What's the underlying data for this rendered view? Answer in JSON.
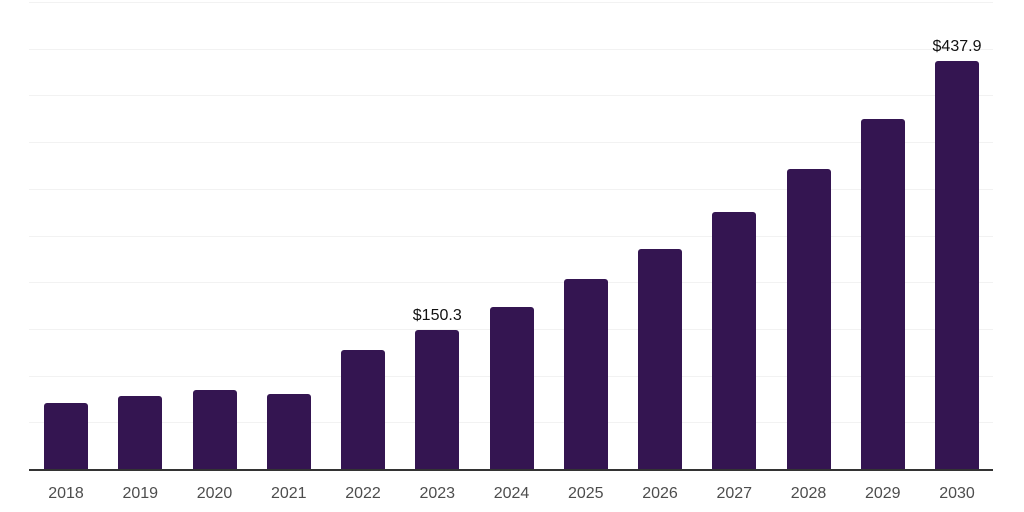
{
  "chart_data": {
    "type": "bar",
    "categories": [
      "2018",
      "2019",
      "2020",
      "2021",
      "2022",
      "2023",
      "2024",
      "2025",
      "2026",
      "2027",
      "2028",
      "2029",
      "2030"
    ],
    "values": [
      72.0,
      79.5,
      85.5,
      81.5,
      128.0,
      150.3,
      174.5,
      204.0,
      236.5,
      276.0,
      322.5,
      376.0,
      437.9
    ],
    "data_labels": {
      "2023": "$150.3",
      "2030": "$437.9"
    },
    "xlabel": "",
    "ylabel": "",
    "ylim": [
      0,
      500
    ],
    "gridline_step": 50,
    "grid": "horizontal",
    "legend": "none",
    "colors": {
      "bar": "#341551",
      "axis_line": "#333333",
      "grid_line": "#f2f2f2",
      "tick_label": "#4d4d4d",
      "data_label": "#111111"
    }
  }
}
